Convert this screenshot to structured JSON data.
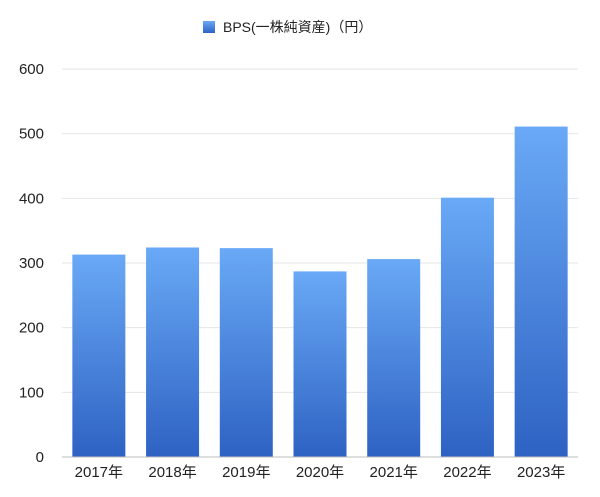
{
  "chart_data": {
    "type": "bar",
    "title": "",
    "xlabel": "",
    "ylabel": "",
    "categories": [
      "2017年",
      "2018年",
      "2019年",
      "2020年",
      "2021年",
      "2022年",
      "2023年"
    ],
    "series": [
      {
        "name": "BPS(一株純資産)（円）",
        "values": [
          313,
          324,
          323,
          287,
          306,
          401,
          511
        ]
      }
    ],
    "ylim": [
      0,
      600
    ],
    "yticks": [
      0,
      100,
      200,
      300,
      400,
      500,
      600
    ],
    "grid": true,
    "legend_position": "top-center",
    "colors": {
      "bar_top": "#69a9f6",
      "bar_bottom": "#2e62c3",
      "grid": "#e6e6e6",
      "axis": "#bdbdbd"
    }
  }
}
